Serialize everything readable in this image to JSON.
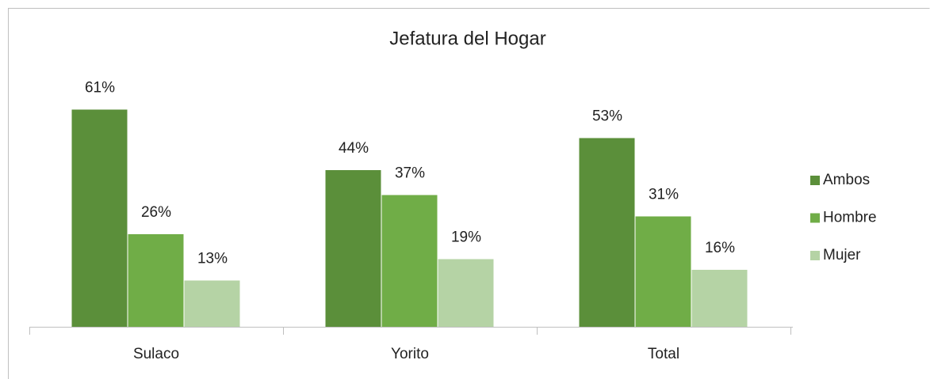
{
  "chart_data": {
    "type": "bar",
    "title": "Jefatura del Hogar",
    "categories": [
      "Sulaco",
      "Yorito",
      "Total"
    ],
    "series": [
      {
        "name": "Ambos",
        "color": "#5b8f3a",
        "values": [
          61,
          44,
          53
        ],
        "value_labels": [
          "61%",
          "44%",
          "53%"
        ]
      },
      {
        "name": "Hombre",
        "color": "#70ad47",
        "values": [
          26,
          37,
          31
        ],
        "value_labels": [
          "26%",
          "37%",
          "31%"
        ]
      },
      {
        "name": "Mujer",
        "color": "#b5d3a5",
        "values": [
          13,
          19,
          16
        ],
        "value_labels": [
          "13%",
          "19%",
          "16%"
        ]
      }
    ],
    "legend": "right"
  }
}
